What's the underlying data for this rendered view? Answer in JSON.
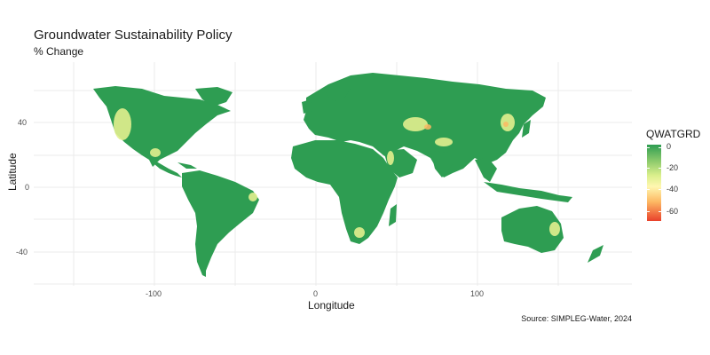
{
  "map": {
    "title": "Groundwater Sustainability Policy",
    "subtitle": "% Change",
    "x_axis_title": "Longitude",
    "y_axis_title": "Latitude",
    "x_ticks": [
      "-100",
      "0",
      "100"
    ],
    "y_ticks": [
      "40",
      "0",
      "-40"
    ],
    "caption": "Source: SIMPLEG-Water, 2024",
    "land_color": "#2e9d52",
    "legend": {
      "title": "QWATGRD",
      "labels": [
        "0",
        "-20",
        "-40",
        "-60"
      ],
      "colors": [
        "#2e9d52",
        "#d9ef8b",
        "#fdb863",
        "#e9412b"
      ]
    }
  }
}
